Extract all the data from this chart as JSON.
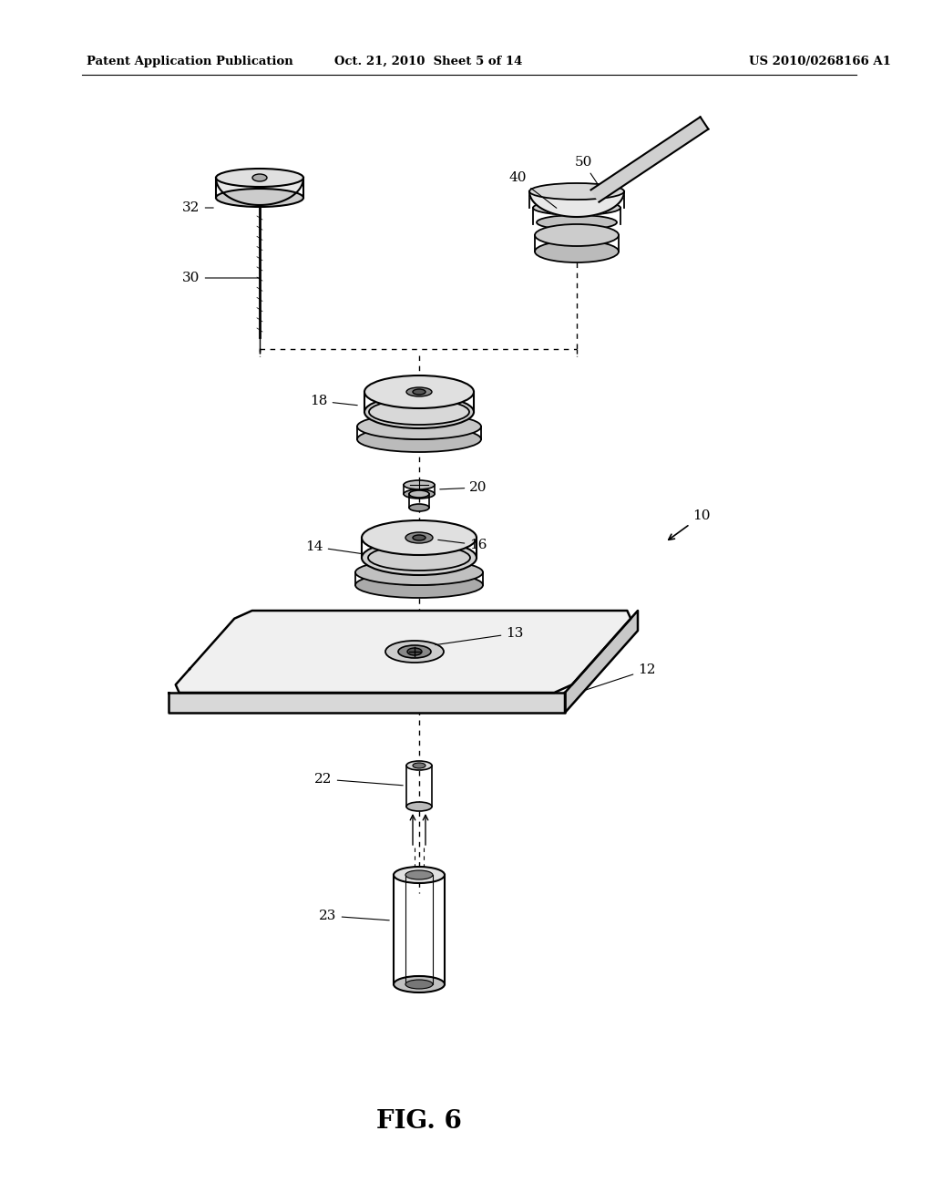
{
  "title": "FIG. 6",
  "header_left": "Patent Application Publication",
  "header_center": "Oct. 21, 2010  Sheet 5 of 14",
  "header_right": "US 2010/0268166 A1",
  "bg_color": "#ffffff",
  "line_color": "#000000",
  "fig_width": 1024,
  "fig_height": 1320
}
